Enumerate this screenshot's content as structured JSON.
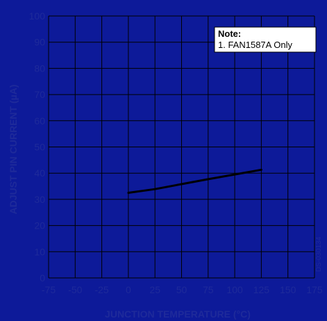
{
  "colors": {
    "background": "#0d1a99",
    "grid": "#000000",
    "tick_text": "#1e2a9a",
    "series": "#000000",
    "note_box": "#ffffff"
  },
  "note": {
    "title": "Note:",
    "line1": "1.  FAN1587A Only"
  },
  "side_code": "DS-030134",
  "chart_data": {
    "type": "line",
    "xlabel": "JUNCTION TEMPERATURE (°C)",
    "ylabel": "ADJUST PIN CURRENT (µA)",
    "xlim": [
      -75,
      175
    ],
    "ylim": [
      0,
      100
    ],
    "x_ticks": [
      -75,
      -50,
      -25,
      0,
      25,
      50,
      75,
      100,
      125,
      150,
      175
    ],
    "y_ticks": [
      0,
      10,
      20,
      30,
      40,
      50,
      60,
      70,
      80,
      90,
      100
    ],
    "grid": true,
    "series": [
      {
        "x": [
          0,
          25,
          50,
          75,
          100,
          125
        ],
        "y": [
          32.5,
          33.9,
          35.8,
          37.7,
          39.5,
          41.3
        ]
      }
    ]
  }
}
